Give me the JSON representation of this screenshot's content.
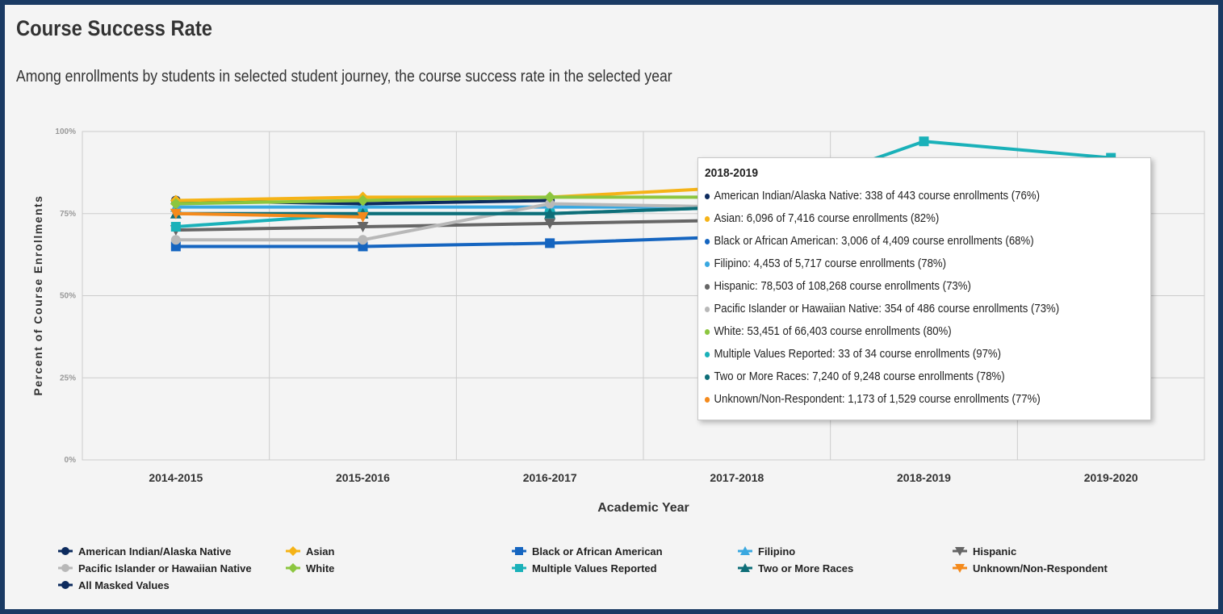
{
  "header": {
    "title": "Course Success Rate",
    "subtitle": "Among enrollments by students in selected student journey, the course success rate in the selected year"
  },
  "chart_data": {
    "type": "line",
    "title": "Course Success Rate",
    "xlabel": "Academic Year",
    "ylabel": "Percent of Course Enrollments",
    "categories": [
      "2014-2015",
      "2015-2016",
      "2016-2017",
      "2017-2018",
      "2018-2019",
      "2019-2020"
    ],
    "ylim": [
      0,
      100
    ],
    "yticks": [
      0,
      25,
      50,
      75,
      100
    ],
    "ytick_labels": [
      "0%",
      "25%",
      "50%",
      "75%",
      "100%"
    ],
    "grid": true,
    "legend_position": "bottom",
    "series": [
      {
        "name": "American Indian/Alaska Native",
        "color": "#0d2b5e",
        "marker": "circle",
        "values": [
          79,
          78,
          79,
          null,
          76,
          null
        ]
      },
      {
        "name": "Asian",
        "color": "#f5b317",
        "marker": "diamond",
        "values": [
          79,
          80,
          80,
          83,
          82,
          null
        ]
      },
      {
        "name": "Black or African American",
        "color": "#1565c0",
        "marker": "square",
        "values": [
          65,
          65,
          66,
          68,
          68,
          null
        ]
      },
      {
        "name": "Filipino",
        "color": "#3aa8e0",
        "marker": "triangle",
        "values": [
          77,
          77,
          77,
          77,
          78,
          null
        ]
      },
      {
        "name": "Hispanic",
        "color": "#666666",
        "marker": "triangle-down",
        "values": [
          70,
          71,
          72,
          73,
          73,
          null
        ]
      },
      {
        "name": "Pacific Islander or Hawaiian Native",
        "color": "#b8b8b8",
        "marker": "circle",
        "values": [
          67,
          67,
          78,
          77,
          73,
          null
        ]
      },
      {
        "name": "White",
        "color": "#8cc63f",
        "marker": "diamond",
        "values": [
          78,
          79,
          80,
          80,
          80,
          null
        ]
      },
      {
        "name": "Multiple Values Reported",
        "color": "#1ab1b9",
        "marker": "square",
        "values": [
          71,
          75,
          75,
          77,
          97,
          92
        ]
      },
      {
        "name": "Two or More Races",
        "color": "#0e6e78",
        "marker": "triangle",
        "values": [
          75,
          75,
          75,
          77,
          78,
          null
        ]
      },
      {
        "name": "Unknown/Non-Respondent",
        "color": "#f48a1c",
        "marker": "triangle-down",
        "values": [
          75,
          74,
          null,
          null,
          77,
          null
        ]
      },
      {
        "name": "All Masked Values",
        "color": "#0d2b5e",
        "marker": "circle",
        "values": [
          null,
          null,
          null,
          null,
          null,
          null
        ]
      }
    ]
  },
  "tooltip": {
    "title": "2018-2019",
    "rows": [
      {
        "text": "American Indian/Alaska Native: 338 of 443 course enrollments (76%)",
        "color": "#0d2b5e"
      },
      {
        "text": "Asian: 6,096 of 7,416 course enrollments (82%)",
        "color": "#f5b317"
      },
      {
        "text": "Black or African American: 3,006 of 4,409 course enrollments (68%)",
        "color": "#1565c0"
      },
      {
        "text": "Filipino: 4,453 of 5,717 course enrollments (78%)",
        "color": "#3aa8e0"
      },
      {
        "text": "Hispanic: 78,503 of 108,268 course enrollments (73%)",
        "color": "#666666"
      },
      {
        "text": "Pacific Islander or Hawaiian Native: 354 of 486 course enrollments (73%)",
        "color": "#b8b8b8"
      },
      {
        "text": "White: 53,451 of 66,403 course enrollments (80%)",
        "color": "#8cc63f"
      },
      {
        "text": "Multiple Values Reported: 33 of 34 course enrollments (97%)",
        "color": "#1ab1b9"
      },
      {
        "text": "Two or More Races: 7,240 of 9,248 course enrollments (78%)",
        "color": "#0e6e78"
      },
      {
        "text": "Unknown/Non-Respondent: 1,173 of 1,529 course enrollments (77%)",
        "color": "#f48a1c"
      }
    ]
  }
}
